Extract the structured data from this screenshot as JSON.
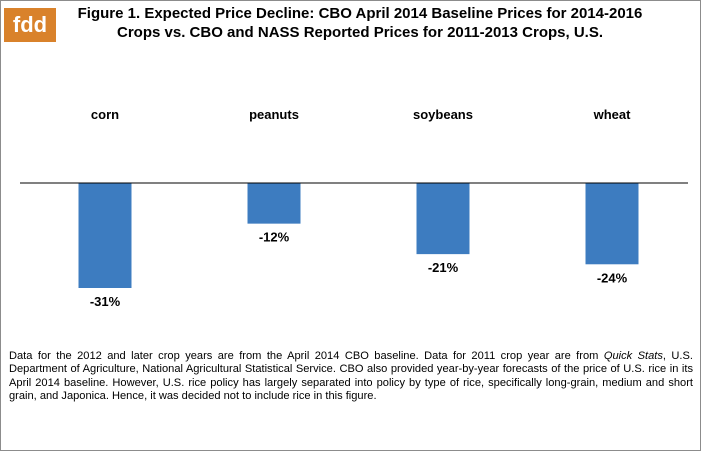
{
  "logo": {
    "text": "fdd"
  },
  "chart_data": {
    "type": "bar",
    "title": "Figure 1. Expected Price Decline: CBO April 2014 Baseline Prices for 2014-2016 Crops vs. CBO and NASS Reported Prices for 2011-2013 Crops, U.S.",
    "categories": [
      "corn",
      "peanuts",
      "soybeans",
      "wheat"
    ],
    "values": [
      -31,
      -12,
      -21,
      -24
    ],
    "value_labels": [
      "-31%",
      "-12%",
      "-21%",
      "-24%"
    ],
    "unit": "%",
    "ylim": [
      -31,
      0
    ],
    "grid": false,
    "legend": "none",
    "bar_color": "#3d7cc0",
    "axis_color": "#000000"
  },
  "footnote": {
    "part1": "Data for the 2012 and later crop years are from the April 2014 CBO baseline. Data for 2011 crop year are from ",
    "italic": "Quick Stats",
    "part2": ", U.S. Department of Agriculture, National Agricultural Statistical Service. CBO also provided year-by-year forecasts of the price of U.S. rice in its April 2014 baseline. However, U.S. rice policy has largely separated into policy by type of rice, specifically long-grain, medium and short grain, and Japonica. Hence, it was decided not to include rice in this figure."
  }
}
